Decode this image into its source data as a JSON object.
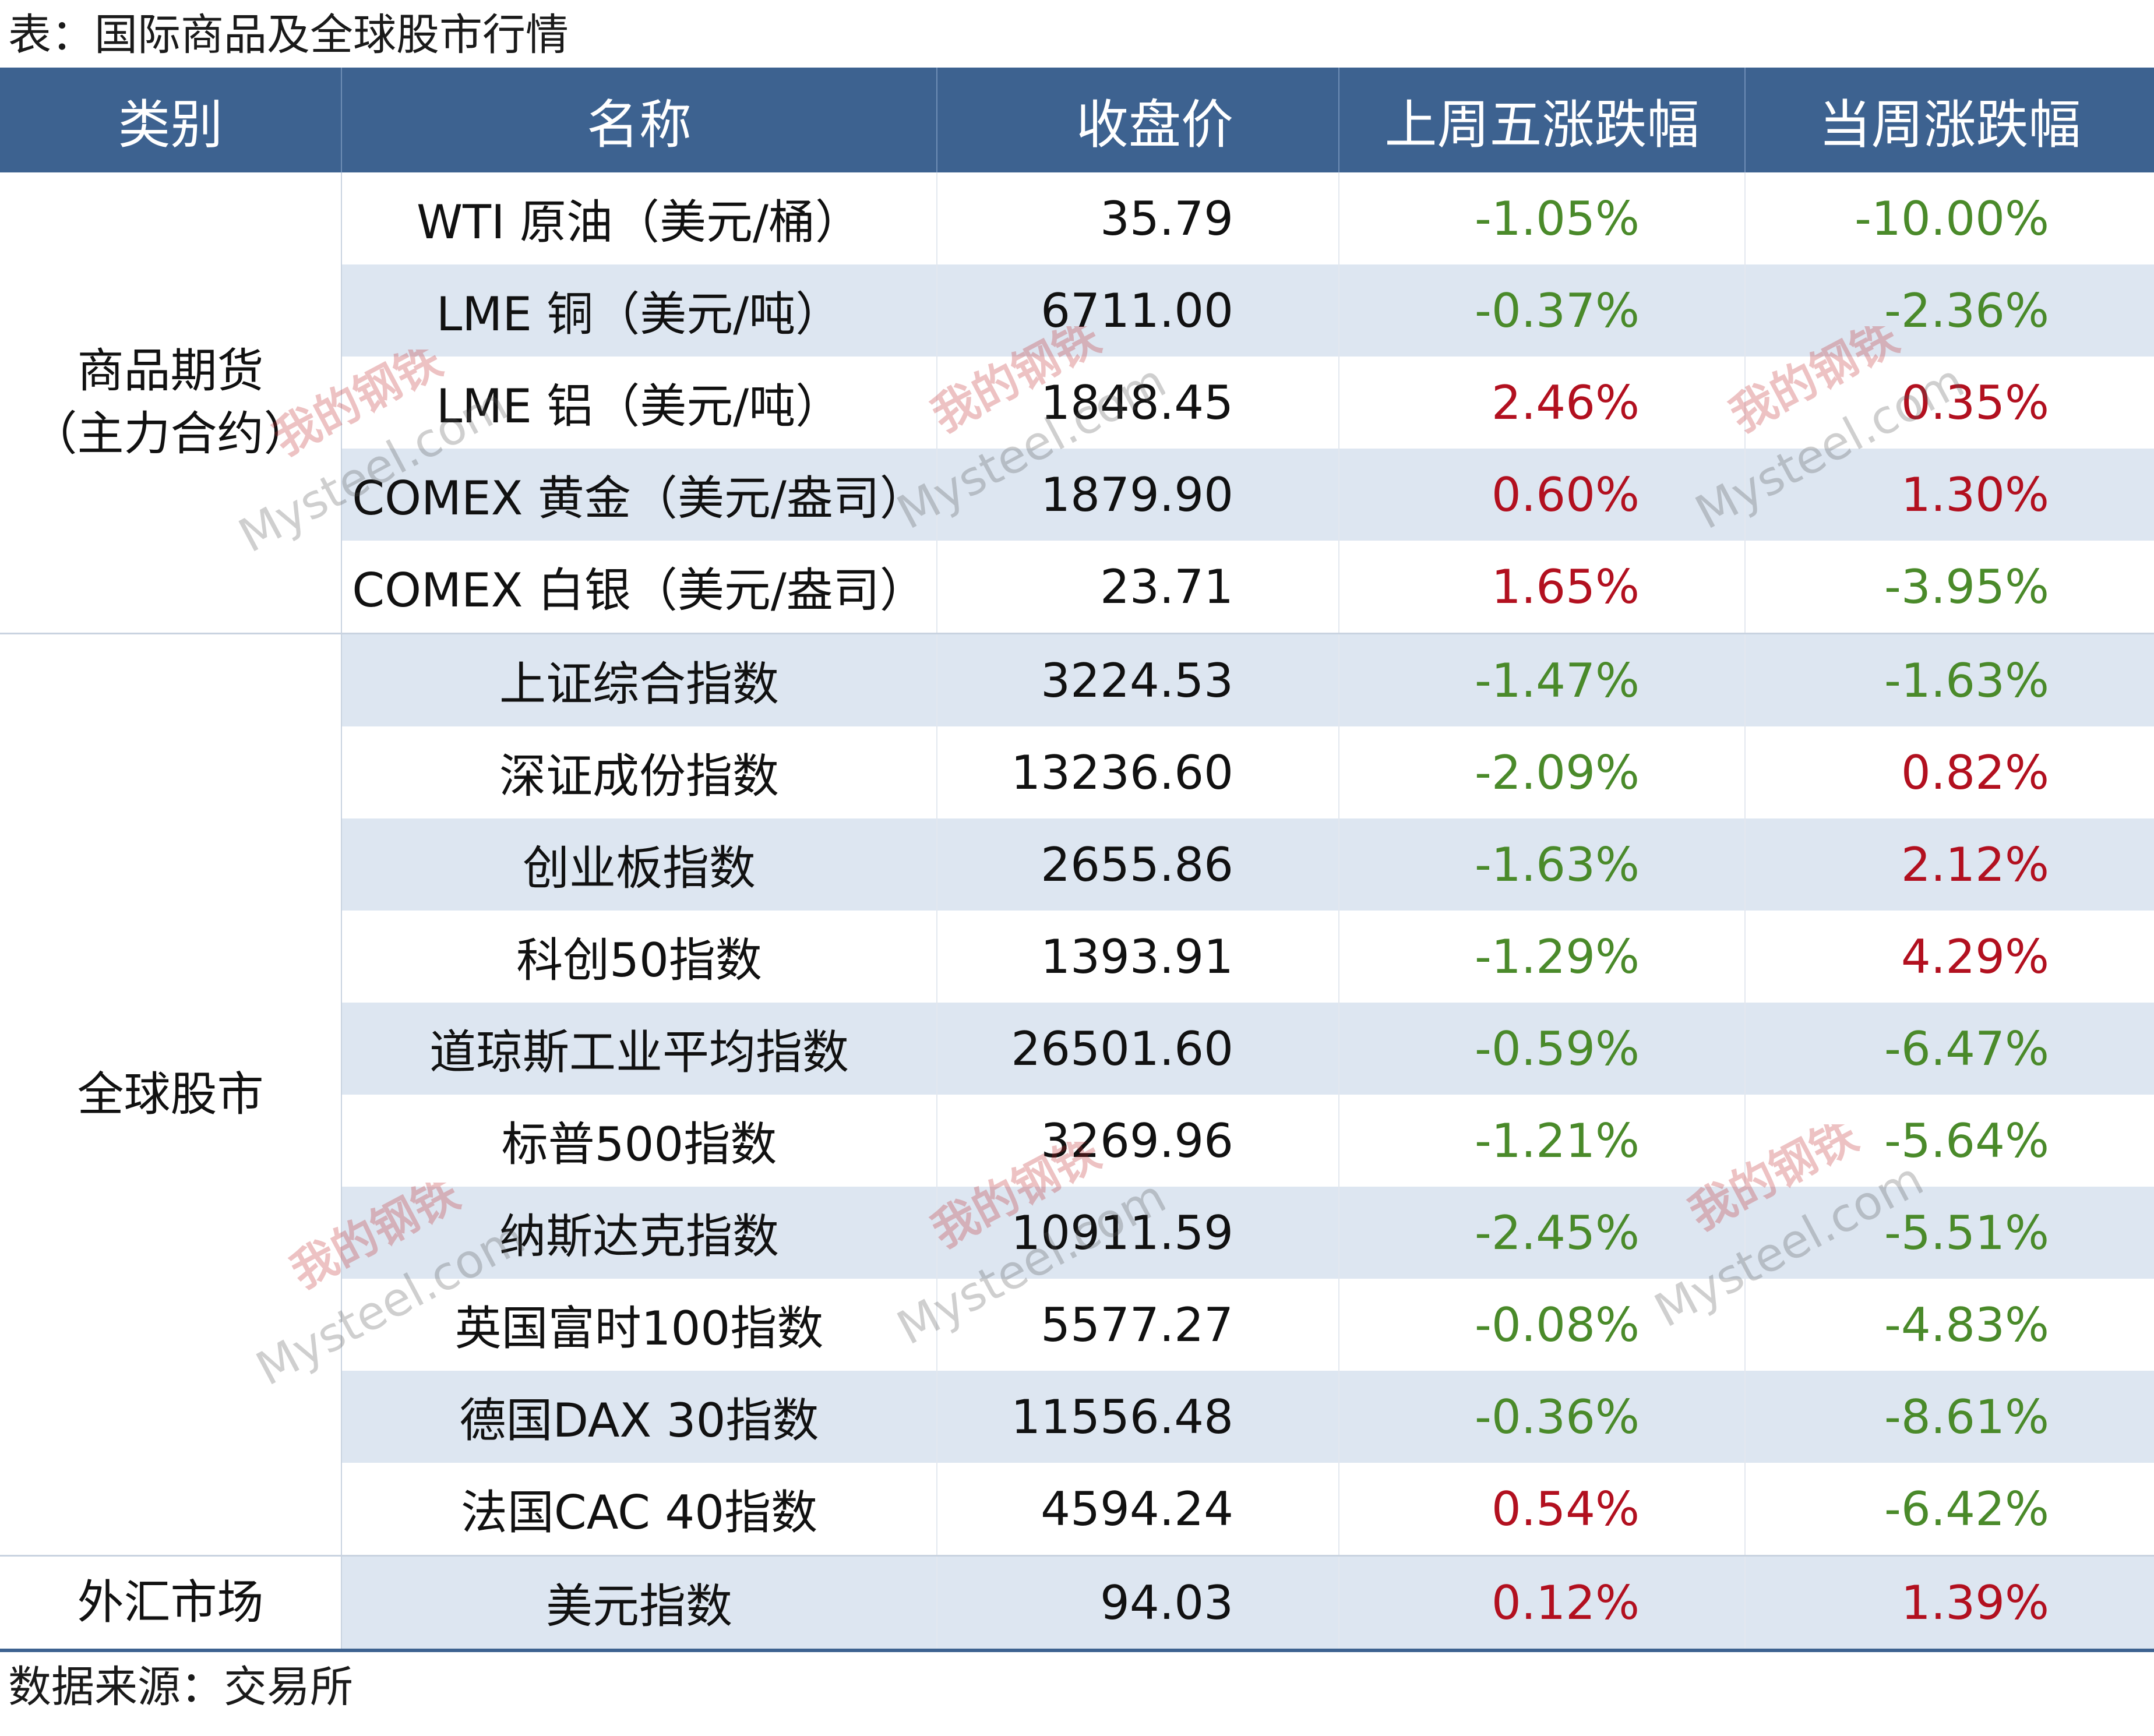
{
  "caption": "表：国际商品及全球股市行情",
  "source": "数据来源：交易所",
  "colors": {
    "header_bg": "#3d6290",
    "band_bg": "#dde6f1",
    "up": "#b2101f",
    "down": "#4a8a2a"
  },
  "headers": [
    "类别",
    "名称",
    "收盘价",
    "上周五涨跌幅",
    "当周涨跌幅"
  ],
  "groups": [
    {
      "category_line1": "商品期货",
      "category_line2": "（主力合约）",
      "rows": [
        {
          "name": "WTI 原油（美元/桶）",
          "price": "35.79",
          "chg_fri": "-1.05%",
          "chg_week": "-10.00%"
        },
        {
          "name": "LME 铜（美元/吨）",
          "price": "6711.00",
          "chg_fri": "-0.37%",
          "chg_week": "-2.36%"
        },
        {
          "name": "LME 铝（美元/吨）",
          "price": "1848.45",
          "chg_fri": "2.46%",
          "chg_week": "0.35%"
        },
        {
          "name": "COMEX 黄金（美元/盎司）",
          "price": "1879.90",
          "chg_fri": "0.60%",
          "chg_week": "1.30%"
        },
        {
          "name": "COMEX 白银（美元/盎司）",
          "price": "23.71",
          "chg_fri": "1.65%",
          "chg_week": "-3.95%"
        }
      ]
    },
    {
      "category_line1": "全球股市",
      "rows": [
        {
          "name": "上证综合指数",
          "price": "3224.53",
          "chg_fri": "-1.47%",
          "chg_week": "-1.63%"
        },
        {
          "name": "深证成份指数",
          "price": "13236.60",
          "chg_fri": "-2.09%",
          "chg_week": "0.82%"
        },
        {
          "name": "创业板指数",
          "price": "2655.86",
          "chg_fri": "-1.63%",
          "chg_week": "2.12%"
        },
        {
          "name": "科创50指数",
          "price": "1393.91",
          "chg_fri": "-1.29%",
          "chg_week": "4.29%"
        },
        {
          "name": "道琼斯工业平均指数",
          "price": "26501.60",
          "chg_fri": "-0.59%",
          "chg_week": "-6.47%"
        },
        {
          "name": "标普500指数",
          "price": "3269.96",
          "chg_fri": "-1.21%",
          "chg_week": "-5.64%"
        },
        {
          "name": "纳斯达克指数",
          "price": "10911.59",
          "chg_fri": "-2.45%",
          "chg_week": "-5.51%"
        },
        {
          "name": "英国富时100指数",
          "price": "5577.27",
          "chg_fri": "-0.08%",
          "chg_week": "-4.83%"
        },
        {
          "name": "德国DAX 30指数",
          "price": "11556.48",
          "chg_fri": "-0.36%",
          "chg_week": "-8.61%"
        },
        {
          "name": "法国CAC 40指数",
          "price": "4594.24",
          "chg_fri": "0.54%",
          "chg_week": "-6.42%"
        }
      ]
    },
    {
      "category_line1": "外汇市场",
      "rows": [
        {
          "name": "美元指数",
          "price": "94.03",
          "chg_fri": "0.12%",
          "chg_week": "1.39%"
        }
      ]
    }
  ],
  "watermark": {
    "cn": "我的钢铁",
    "en": "Mysteel.com"
  }
}
